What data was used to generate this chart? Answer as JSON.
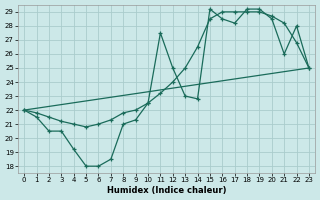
{
  "xlabel": "Humidex (Indice chaleur)",
  "bg_color": "#cce8e8",
  "grid_color": "#aacccc",
  "line_color": "#1a6b5a",
  "xlim": [
    -0.5,
    23.5
  ],
  "ylim": [
    17.5,
    29.5
  ],
  "xticks": [
    0,
    1,
    2,
    3,
    4,
    5,
    6,
    7,
    8,
    9,
    10,
    11,
    12,
    13,
    14,
    15,
    16,
    17,
    18,
    19,
    20,
    21,
    22,
    23
  ],
  "yticks": [
    18,
    19,
    20,
    21,
    22,
    23,
    24,
    25,
    26,
    27,
    28,
    29
  ],
  "line1_x": [
    0,
    1,
    2,
    3,
    4,
    5,
    6,
    7,
    8,
    9,
    10,
    11,
    12,
    13,
    14,
    15,
    16,
    17,
    18,
    19,
    20,
    21,
    22,
    23
  ],
  "line1_y": [
    22,
    21.5,
    20.5,
    20.5,
    19.2,
    18.0,
    18.0,
    18.5,
    21.0,
    21.3,
    22.5,
    27.5,
    25.0,
    23.0,
    22.8,
    29.2,
    28.5,
    28.2,
    29.2,
    29.2,
    28.5,
    26.0,
    28.0,
    25.0
  ],
  "line2_x": [
    0,
    23
  ],
  "line2_y": [
    22,
    25.0
  ],
  "line3_x": [
    0,
    1,
    2,
    3,
    4,
    5,
    6,
    7,
    8,
    9,
    10,
    11,
    12,
    13,
    14,
    15,
    16,
    17,
    18,
    19,
    20,
    21,
    22,
    23
  ],
  "line3_y": [
    22,
    21.8,
    21.5,
    21.2,
    21.0,
    20.8,
    21.0,
    21.3,
    21.8,
    22.0,
    22.5,
    23.2,
    24.0,
    25.0,
    26.5,
    28.5,
    29.0,
    29.0,
    29.0,
    29.0,
    28.7,
    28.2,
    26.8,
    25.0
  ]
}
